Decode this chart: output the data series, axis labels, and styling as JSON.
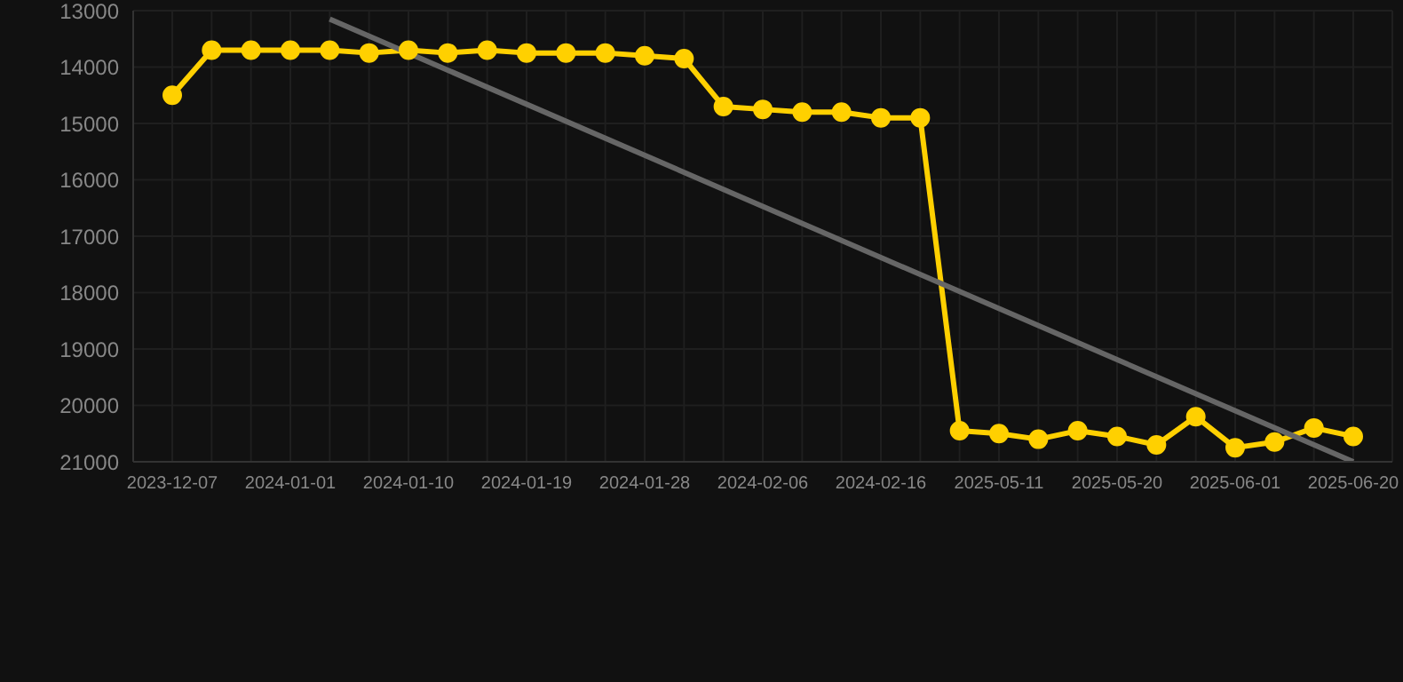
{
  "chart_data": {
    "type": "line",
    "categories": [
      "2023-12-07",
      null,
      null,
      "2024-01-01",
      null,
      null,
      "2024-01-10",
      null,
      null,
      "2024-01-19",
      null,
      null,
      "2024-01-28",
      null,
      null,
      "2024-02-06",
      null,
      null,
      "2024-02-16",
      null,
      null,
      "2025-05-11",
      null,
      null,
      "2025-05-20",
      null,
      null,
      "2025-06-01",
      null,
      null,
      "2025-06-20"
    ],
    "series": [
      {
        "color": "#ffd000",
        "marker": "circle",
        "values": [
          14500,
          13700,
          13700,
          13700,
          13700,
          13750,
          13700,
          13750,
          13700,
          13750,
          13750,
          13750,
          13800,
          13850,
          14700,
          14750,
          14800,
          14800,
          14900,
          14900,
          20450,
          20500,
          20600,
          20450,
          20550,
          20700,
          20200,
          20750,
          20650,
          20400,
          20550
        ]
      },
      {
        "type": "line",
        "color": "#666666",
        "marker": "none",
        "values": [
          null,
          null,
          null,
          null,
          13150,
          null,
          null,
          null,
          null,
          null,
          null,
          null,
          null,
          null,
          null,
          null,
          null,
          null,
          null,
          null,
          null,
          null,
          null,
          null,
          null,
          null,
          null,
          null,
          null,
          null,
          21000
        ]
      }
    ],
    "ylim": [
      21000,
      13000
    ],
    "yticks": [
      13000,
      14000,
      15000,
      16000,
      17000,
      18000,
      19000,
      20000,
      21000
    ],
    "grid": true
  }
}
